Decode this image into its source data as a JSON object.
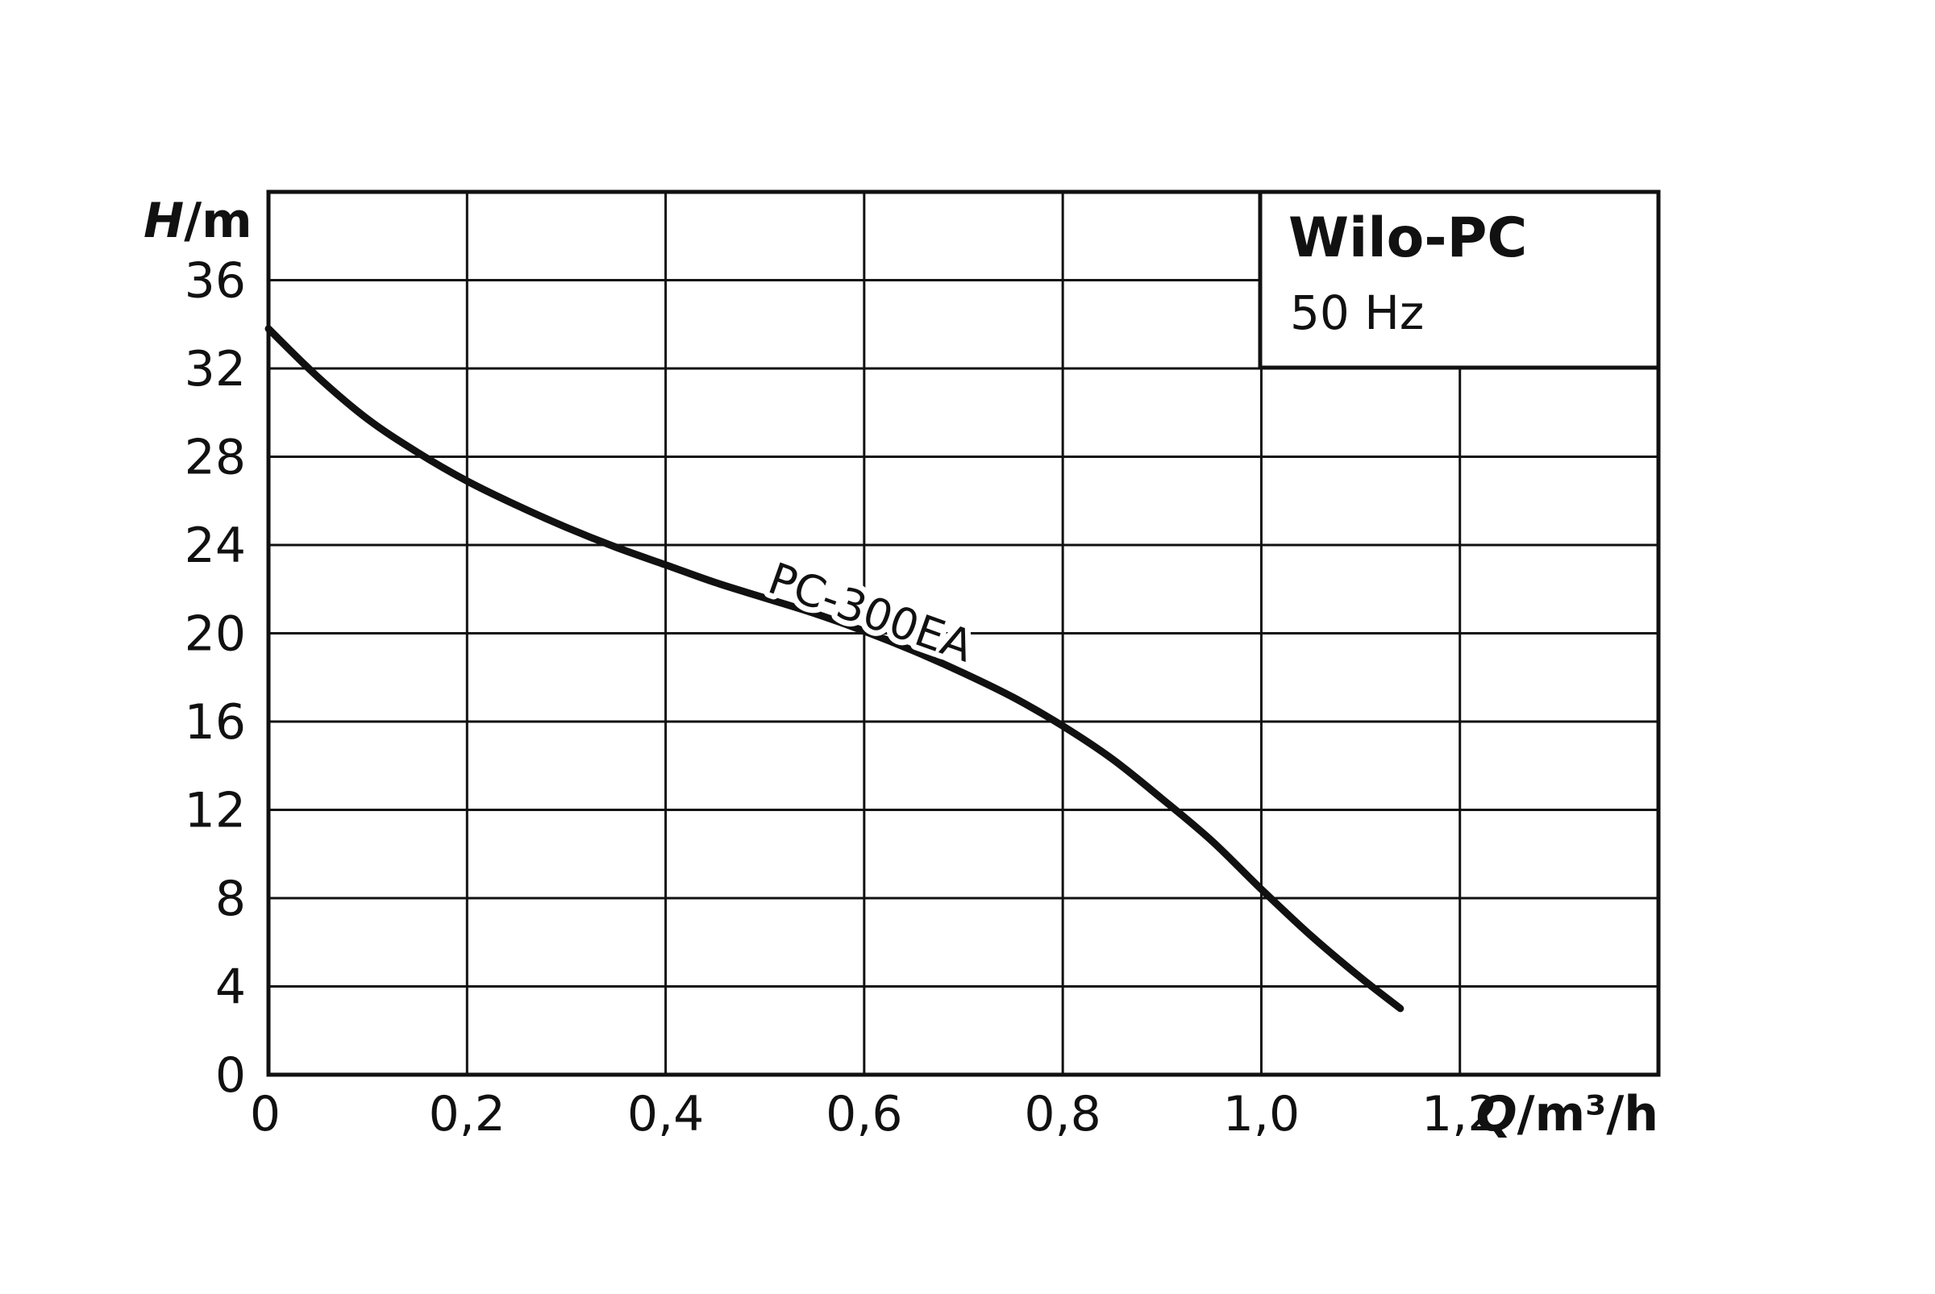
{
  "chart_data": {
    "type": "line",
    "title": "Wilo-PC",
    "subtitle": "50 Hz",
    "xlabel": {
      "symbol": "Q",
      "unit": "/m³/h"
    },
    "ylabel": {
      "symbol": "H",
      "unit": "/m"
    },
    "xlim": [
      0,
      1.4
    ],
    "ylim": [
      0,
      40
    ],
    "x_ticks": [
      0,
      0.2,
      0.4,
      0.6,
      0.8,
      1.0,
      1.2
    ],
    "x_tick_labels": [
      "0",
      "0,2",
      "0,4",
      "0,6",
      "0,8",
      "1,0",
      "1,2"
    ],
    "y_ticks": [
      0,
      4,
      8,
      12,
      16,
      20,
      24,
      28,
      32,
      36
    ],
    "y_tick_labels": [
      "0",
      "4",
      "8",
      "12",
      "16",
      "20",
      "24",
      "28",
      "32",
      "36"
    ],
    "grid": true,
    "legend_box": "top-right",
    "series": [
      {
        "name": "PC-300EA",
        "x": [
          0,
          0.05,
          0.1,
          0.15,
          0.2,
          0.25,
          0.3,
          0.35,
          0.4,
          0.45,
          0.5,
          0.55,
          0.6,
          0.65,
          0.7,
          0.75,
          0.8,
          0.85,
          0.9,
          0.95,
          1.0,
          1.05,
          1.1,
          1.14
        ],
        "y": [
          33.8,
          31.6,
          29.7,
          28.2,
          26.9,
          25.8,
          24.8,
          23.9,
          23.1,
          22.3,
          21.6,
          20.9,
          20.1,
          19.2,
          18.2,
          17.1,
          15.8,
          14.3,
          12.5,
          10.6,
          8.4,
          6.3,
          4.4,
          3.0
        ],
        "label_at_x": 0.6,
        "color": "#111111"
      }
    ]
  }
}
